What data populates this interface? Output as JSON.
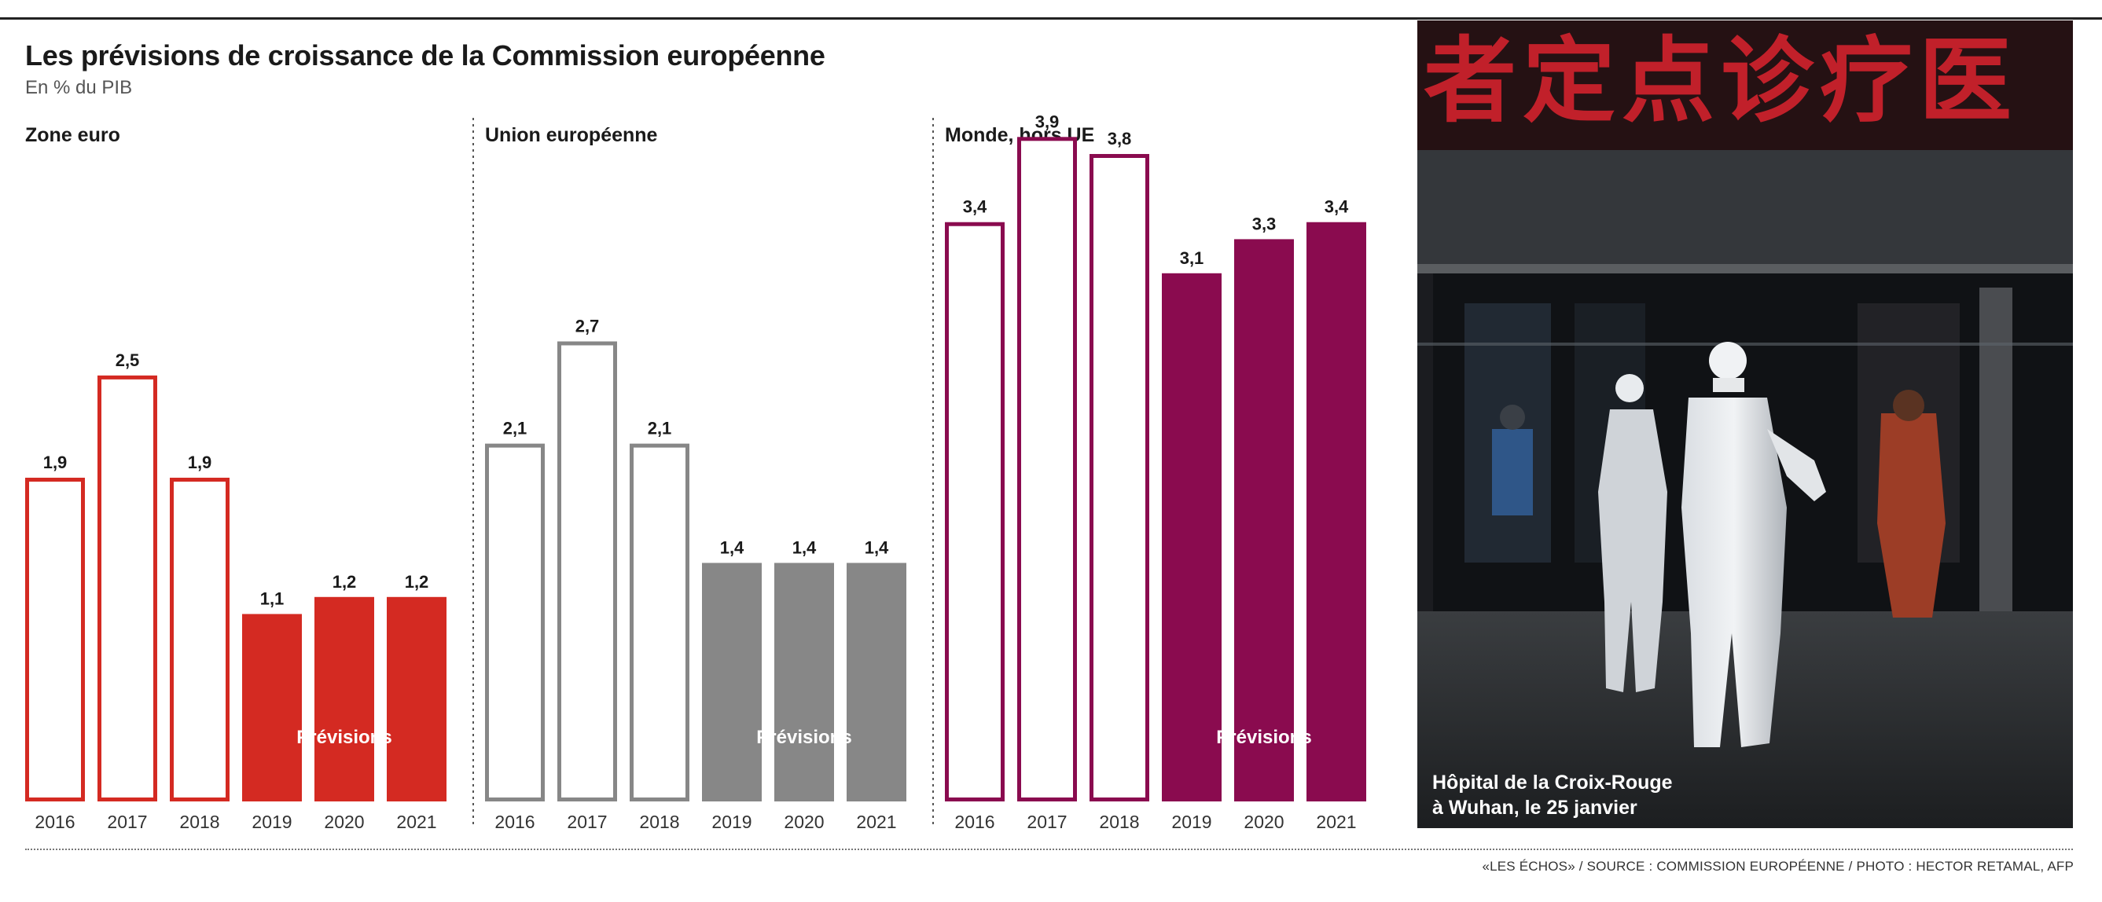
{
  "header": {
    "title": "Les prévisions de croissance de la Commission européenne",
    "subtitle": "En % du PIB"
  },
  "chart_data": [
    {
      "type": "bar",
      "title": "Zone euro",
      "categories": [
        "2016",
        "2017",
        "2018",
        "2019",
        "2020",
        "2021"
      ],
      "values": [
        1.9,
        2.5,
        1.9,
        1.1,
        1.2,
        1.2
      ],
      "labels": [
        "1,9",
        "2,5",
        "1,9",
        "1,1",
        "1,2",
        "1,2"
      ],
      "forecast_from_index": 3,
      "forecast_label": "Prévisions",
      "color": "#d42a22"
    },
    {
      "type": "bar",
      "title": "Union européenne",
      "categories": [
        "2016",
        "2017",
        "2018",
        "2019",
        "2020",
        "2021"
      ],
      "values": [
        2.1,
        2.7,
        2.1,
        1.4,
        1.4,
        1.4
      ],
      "labels": [
        "2,1",
        "2,7",
        "2,1",
        "1,4",
        "1,4",
        "1,4"
      ],
      "forecast_from_index": 3,
      "forecast_label": "Prévisions",
      "color": "#878787"
    },
    {
      "type": "bar",
      "title": "Monde, hors UE",
      "categories": [
        "2016",
        "2017",
        "2018",
        "2019",
        "2020",
        "2021"
      ],
      "values": [
        3.4,
        3.9,
        3.8,
        3.1,
        3.3,
        3.4
      ],
      "labels": [
        "3,4",
        "3,9",
        "3,8",
        "3,1",
        "3,3",
        "3,4"
      ],
      "forecast_from_index": 3,
      "forecast_label": "Prévisions",
      "color": "#8a0b4f"
    }
  ],
  "photo": {
    "sign_text": "者定点诊疗医",
    "caption_line1": "Hôpital de la Croix-Rouge",
    "caption_line2": "à Wuhan, le 25 janvier"
  },
  "footer": {
    "credits": "«LES ÉCHOS» / SOURCE : COMMISSION EUROPÉENNE / PHOTO : HECTOR RETAMAL, AFP"
  }
}
